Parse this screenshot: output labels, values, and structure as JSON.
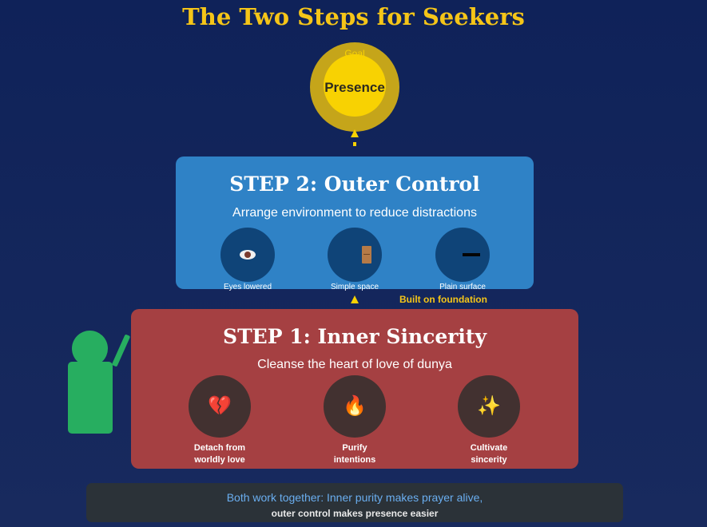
{
  "title": "The Two Steps for Seekers",
  "goal": {
    "label": "Goal",
    "text": "Presence"
  },
  "step2": {
    "title": "STEP 2: Outer Control",
    "subtitle": "Arrange environment to reduce distractions",
    "items": [
      {
        "label": "Eyes lowered",
        "icon": "eye-icon"
      },
      {
        "label": "Simple space",
        "icon": "door-icon"
      },
      {
        "label": "Plain surface",
        "icon": "line-icon"
      }
    ]
  },
  "connector": {
    "label": "Built on foundation"
  },
  "step1": {
    "title": "STEP 1: Inner Sincerity",
    "subtitle": "Cleanse the heart of love of dunya",
    "items": [
      {
        "label_line1": "Detach from",
        "label_line2": "worldly love",
        "icon": "broken-heart-icon",
        "glyph": "💔"
      },
      {
        "label_line1": "Purify",
        "label_line2": "intentions",
        "icon": "fire-icon",
        "glyph": "🔥"
      },
      {
        "label_line1": "Cultivate",
        "label_line2": "sincerity",
        "icon": "sparkles-icon",
        "glyph": "✨"
      }
    ]
  },
  "summary": {
    "line1": "Both work together: Inner purity makes prayer alive,",
    "line2": "outer control makes presence easier"
  },
  "colors": {
    "gold": "#f5c518",
    "step2": "#2f82c6",
    "step1": "#a54042",
    "figure": "#27ae60"
  }
}
